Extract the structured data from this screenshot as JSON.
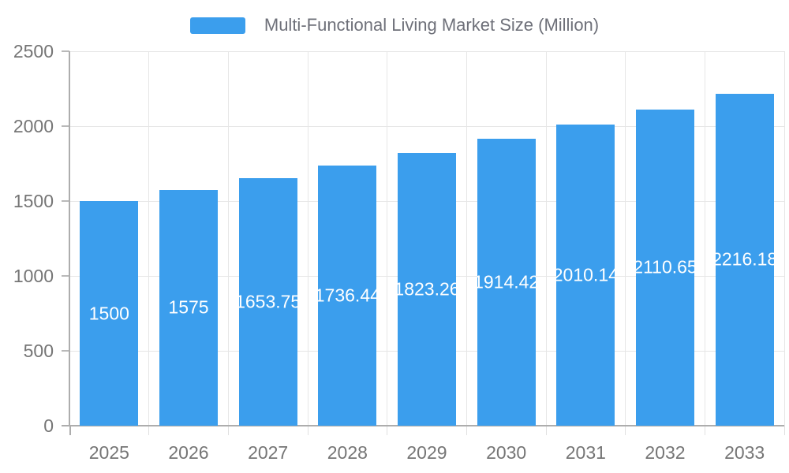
{
  "legend": {
    "label": "Multi-Functional Living Market Size (Million)"
  },
  "colors": {
    "bar": "#3B9EED",
    "grid_line": "#E6E6E6",
    "axis_line": "#ADADAD",
    "tick_text": "#757575",
    "legend_text": "#6E7079",
    "bar_label_text": "#FFFFFF",
    "background": "#FFFFFF"
  },
  "chart_data": {
    "type": "bar",
    "title": "Multi-Functional Living Market Size (Million)",
    "categories": [
      "2025",
      "2026",
      "2027",
      "2028",
      "2029",
      "2030",
      "2031",
      "2032",
      "2033"
    ],
    "values": [
      1500,
      1575,
      1653.75,
      1736.44,
      1823.26,
      1914.42,
      2010.14,
      2110.65,
      2216.18
    ],
    "value_labels": [
      "1500",
      "1575",
      "1653.75",
      "1736.44",
      "1823.26",
      "1914.42",
      "2010.14",
      "2110.65",
      "2216.18"
    ],
    "xlabel": "",
    "ylabel": "",
    "ylim": [
      0,
      2500
    ],
    "yticks": [
      0,
      500,
      1000,
      1500,
      2000,
      2500
    ],
    "grid": true,
    "legend_position": "top",
    "bar_label_position": "inside-middle"
  }
}
